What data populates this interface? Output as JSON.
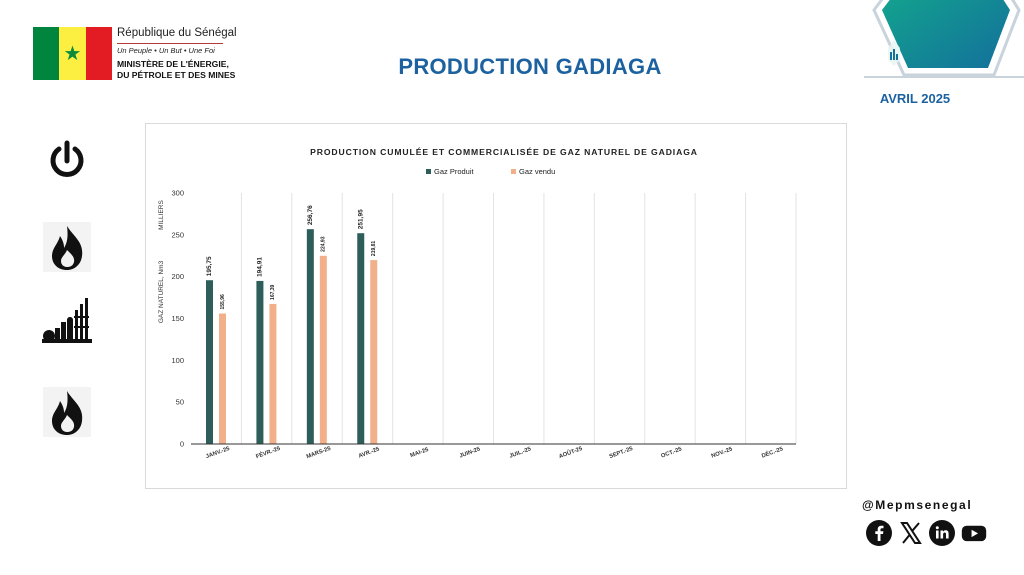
{
  "header": {
    "republic": "République du Sénégal",
    "motto": "Un Peuple  •  Un But  •  Une Foi",
    "ministry_line1": "MINISTÈRE DE L'ÉNERGIE,",
    "ministry_line2": "DU PÉTROLE ET DES MINES",
    "flag_colors": [
      "#00853f",
      "#fdef42",
      "#e31b23"
    ]
  },
  "title": "PRODUCTION GADIAGA",
  "period": "AVRIL 2025",
  "colors": {
    "title_blue": "#1d62a0",
    "produit": "#2d5e5a",
    "vendu": "#f2b08a"
  },
  "side_icons": [
    "power-icon",
    "flame-icon",
    "industrial-plant-icon",
    "flame-icon"
  ],
  "chart_data": {
    "type": "bar",
    "title": "PRODUCTION CUMULÉE ET COMMERCIALISÉE DE GAZ NATUREL DE GADIAGA",
    "ylabel": "GAZ NATUREL, Nm3",
    "yunit": "MILLIERS",
    "ylim": [
      0,
      300
    ],
    "yticks": [
      0,
      50,
      100,
      150,
      200,
      250,
      300
    ],
    "legend_position": "top",
    "grid": "vertical",
    "categories": [
      "JANV.-25",
      "FÉVR.-25",
      "MARS-25",
      "AVR.-25",
      "MAI-25",
      "JUIN-25",
      "JUIL.-25",
      "AOÛT-25",
      "SEPT.-25",
      "OCT.-25",
      "NOV.-25",
      "DÉC.-25"
    ],
    "series": [
      {
        "name": "Gaz Produit",
        "color": "#2d5e5a",
        "values": [
          195.75,
          194.91,
          256.76,
          251.95,
          null,
          null,
          null,
          null,
          null,
          null,
          null,
          null
        ],
        "labels": [
          "195,75",
          "194,91",
          "256,76",
          "251,95",
          null,
          null,
          null,
          null,
          null,
          null,
          null,
          null
        ]
      },
      {
        "name": "Gaz vendu",
        "color": "#f2b08a",
        "values": [
          155.96,
          167.39,
          224.93,
          219.81,
          null,
          null,
          null,
          null,
          null,
          null,
          null,
          null
        ],
        "labels": [
          "155,96",
          "167,39",
          "224,93",
          "219,81",
          null,
          null,
          null,
          null,
          null,
          null,
          null,
          null
        ]
      }
    ]
  },
  "footer": {
    "handle": "@Mepmsenegal",
    "social": [
      "facebook-icon",
      "x-icon",
      "linkedin-icon",
      "youtube-icon"
    ]
  }
}
